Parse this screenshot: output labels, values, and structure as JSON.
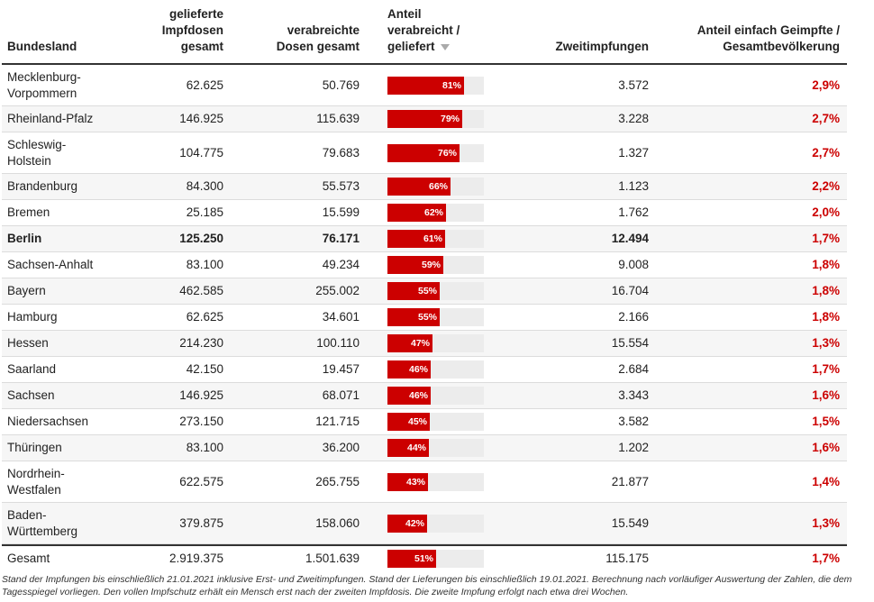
{
  "table": {
    "headers": {
      "bundesland": "Bundesland",
      "geliefert": "gelieferte\nImpfdosen\ngesamt",
      "verabreicht": "verabreichte\nDosen gesamt",
      "anteil_verabreicht": "Anteil\nverabreicht /\ngeliefert",
      "zweitimpfungen": "Zweitimpfungen",
      "anteil_geimpfte": "Anteil einfach Geimpfte /\nGesamtbevölkerung"
    },
    "sort_icon": "sort-descending-icon",
    "accent_color": "#cc0000"
  },
  "chart_data": {
    "type": "table",
    "rows": [
      {
        "bundesland": "Mecklenburg-\nVorpommern",
        "geliefert": "62.625",
        "verabreicht": "50.769",
        "anteil": 81,
        "anteil_label": "81%",
        "zweitimpfungen": "3.572",
        "anteil_geimpfte": "2,9%"
      },
      {
        "bundesland": "Rheinland-Pfalz",
        "geliefert": "146.925",
        "verabreicht": "115.639",
        "anteil": 79,
        "anteil_label": "79%",
        "zweitimpfungen": "3.228",
        "anteil_geimpfte": "2,7%"
      },
      {
        "bundesland": "Schleswig-\nHolstein",
        "geliefert": "104.775",
        "verabreicht": "79.683",
        "anteil": 76,
        "anteil_label": "76%",
        "zweitimpfungen": "1.327",
        "anteil_geimpfte": "2,7%"
      },
      {
        "bundesland": "Brandenburg",
        "geliefert": "84.300",
        "verabreicht": "55.573",
        "anteil": 66,
        "anteil_label": "66%",
        "zweitimpfungen": "1.123",
        "anteil_geimpfte": "2,2%"
      },
      {
        "bundesland": "Bremen",
        "geliefert": "25.185",
        "verabreicht": "15.599",
        "anteil": 62,
        "anteil_label": "62%",
        "zweitimpfungen": "1.762",
        "anteil_geimpfte": "2,0%"
      },
      {
        "bundesland": "Berlin",
        "geliefert": "125.250",
        "verabreicht": "76.171",
        "anteil": 61,
        "anteil_label": "61%",
        "zweitimpfungen": "12.494",
        "anteil_geimpfte": "1,7%",
        "highlight": true
      },
      {
        "bundesland": "Sachsen-Anhalt",
        "geliefert": "83.100",
        "verabreicht": "49.234",
        "anteil": 59,
        "anteil_label": "59%",
        "zweitimpfungen": "9.008",
        "anteil_geimpfte": "1,8%"
      },
      {
        "bundesland": "Bayern",
        "geliefert": "462.585",
        "verabreicht": "255.002",
        "anteil": 55,
        "anteil_label": "55%",
        "zweitimpfungen": "16.704",
        "anteil_geimpfte": "1,8%"
      },
      {
        "bundesland": "Hamburg",
        "geliefert": "62.625",
        "verabreicht": "34.601",
        "anteil": 55,
        "anteil_label": "55%",
        "zweitimpfungen": "2.166",
        "anteil_geimpfte": "1,8%"
      },
      {
        "bundesland": "Hessen",
        "geliefert": "214.230",
        "verabreicht": "100.110",
        "anteil": 47,
        "anteil_label": "47%",
        "zweitimpfungen": "15.554",
        "anteil_geimpfte": "1,3%"
      },
      {
        "bundesland": "Saarland",
        "geliefert": "42.150",
        "verabreicht": "19.457",
        "anteil": 46,
        "anteil_label": "46%",
        "zweitimpfungen": "2.684",
        "anteil_geimpfte": "1,7%"
      },
      {
        "bundesland": "Sachsen",
        "geliefert": "146.925",
        "verabreicht": "68.071",
        "anteil": 46,
        "anteil_label": "46%",
        "zweitimpfungen": "3.343",
        "anteil_geimpfte": "1,6%"
      },
      {
        "bundesland": "Niedersachsen",
        "geliefert": "273.150",
        "verabreicht": "121.715",
        "anteil": 45,
        "anteil_label": "45%",
        "zweitimpfungen": "3.582",
        "anteil_geimpfte": "1,5%"
      },
      {
        "bundesland": "Thüringen",
        "geliefert": "83.100",
        "verabreicht": "36.200",
        "anteil": 44,
        "anteil_label": "44%",
        "zweitimpfungen": "1.202",
        "anteil_geimpfte": "1,6%"
      },
      {
        "bundesland": "Nordrhein-\nWestfalen",
        "geliefert": "622.575",
        "verabreicht": "265.755",
        "anteil": 43,
        "anteil_label": "43%",
        "zweitimpfungen": "21.877",
        "anteil_geimpfte": "1,4%"
      },
      {
        "bundesland": "Baden-\nWürttemberg",
        "geliefert": "379.875",
        "verabreicht": "158.060",
        "anteil": 42,
        "anteil_label": "42%",
        "zweitimpfungen": "15.549",
        "anteil_geimpfte": "1,3%"
      }
    ],
    "total": {
      "bundesland": "Gesamt",
      "geliefert": "2.919.375",
      "verabreicht": "1.501.639",
      "anteil": 51,
      "anteil_label": "51%",
      "zweitimpfungen": "115.175",
      "anteil_geimpfte": "1,7%"
    }
  },
  "footnote": "Stand der Impfungen bis einschließlich 21.01.2021 inklusive Erst- und Zweitimpfungen. Stand der Lieferungen bis einschließlich 19.01.2021. Berechnung nach vorläufiger Auswertung der Zahlen, die dem Tagesspiegel vorliegen. Den vollen Impfschutz erhält ein Mensch erst nach der zweiten Impfdosis. Die zweite Impfung erfolgt nach etwa drei Wochen."
}
